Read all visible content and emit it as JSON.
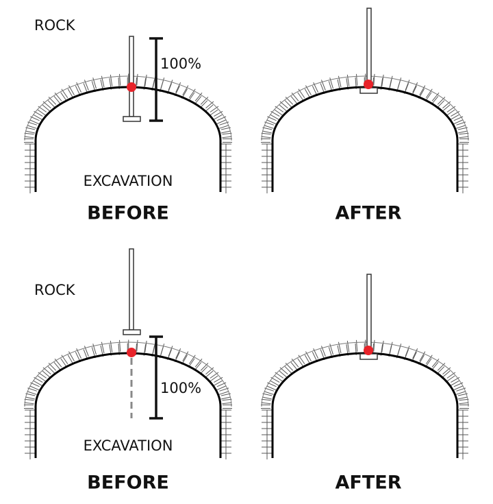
{
  "panels": [
    {
      "rock": "ROCK",
      "measure": "100%",
      "excavation": "EXCAVATION",
      "caption": "BEFORE"
    },
    {
      "caption": "AFTER"
    },
    {
      "rock": "ROCK",
      "measure": "100%",
      "excavation": "EXCAVATION",
      "caption": "BEFORE"
    },
    {
      "caption": "AFTER"
    }
  ]
}
